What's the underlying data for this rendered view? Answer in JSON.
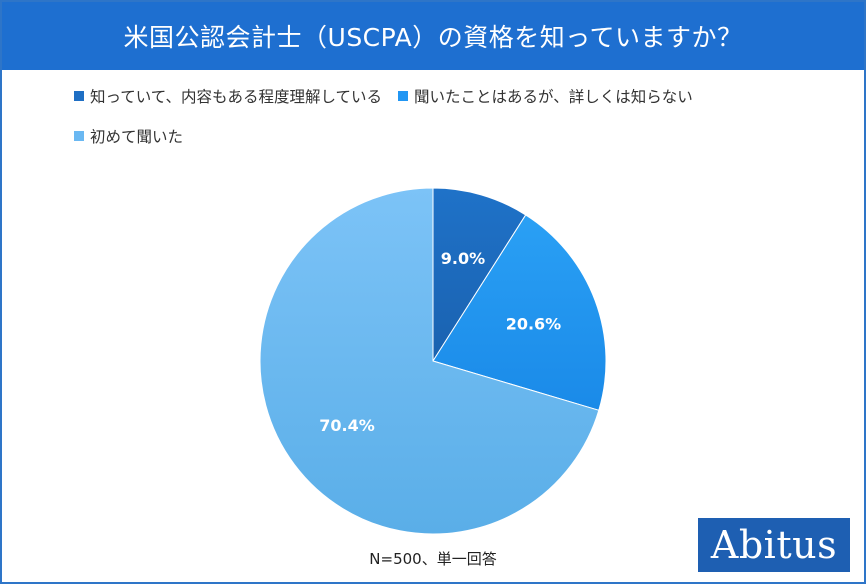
{
  "title": "米国公認会計士（USCPA）の資格を知っていますか？",
  "footnote": "N=500、単一回答",
  "logo": "Abitus",
  "colors": {
    "title_bg": "#1e6fd0",
    "border": "#2e75c8",
    "logo_bg": "#1e5fb2"
  },
  "chart_data": {
    "type": "pie",
    "legend_position": "top",
    "slices": [
      {
        "label": "知っていて、内容もある程度理解している",
        "value": 9.0,
        "display": "9.0%",
        "color": "#1f6fc4"
      },
      {
        "label": "聞いたことはあるが、詳しくは知らない",
        "value": 20.6,
        "display": "20.6%",
        "color": "#2196f3"
      },
      {
        "label": "初めて聞いた",
        "value": 70.4,
        "display": "70.4%",
        "color": "#6ab8f2"
      }
    ]
  }
}
